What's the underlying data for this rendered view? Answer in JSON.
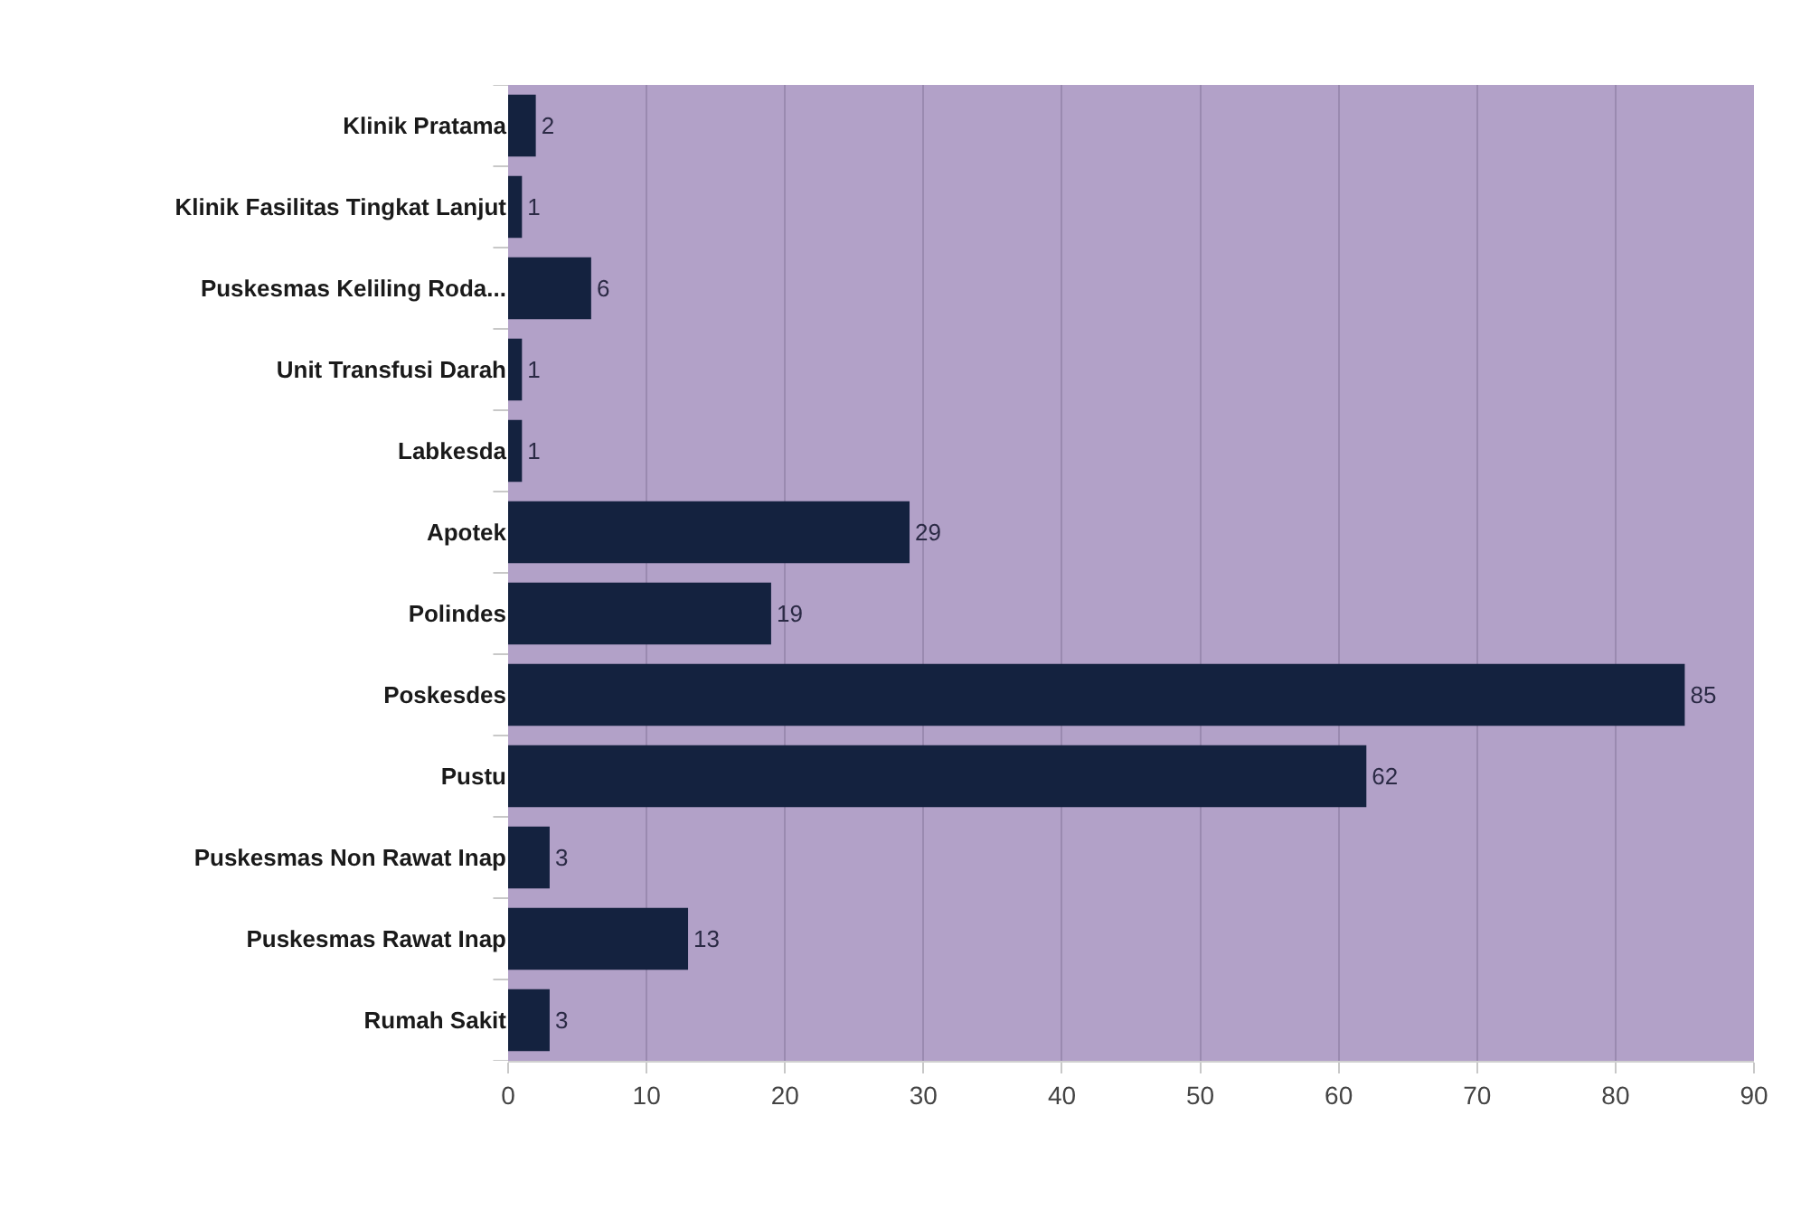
{
  "chart_data": {
    "type": "bar",
    "orientation": "horizontal",
    "categories": [
      "Klinik Pratama",
      "Klinik Fasilitas Tingkat Lanjut",
      "Puskesmas Keliling Roda...",
      "Unit Transfusi Darah",
      "Labkesda",
      "Apotek",
      "Polindes",
      "Poskesdes",
      "Pustu",
      "Puskesmas Non Rawat Inap",
      "Puskesmas Rawat Inap",
      "Rumah Sakit"
    ],
    "values": [
      2,
      1,
      6,
      1,
      1,
      29,
      19,
      85,
      62,
      3,
      13,
      3
    ],
    "color": "#14223f",
    "xlim": [
      0,
      90
    ],
    "xticks": [
      0,
      10,
      20,
      30,
      40,
      50,
      60,
      70,
      80,
      90
    ],
    "grid": "x",
    "data_labels": true
  }
}
